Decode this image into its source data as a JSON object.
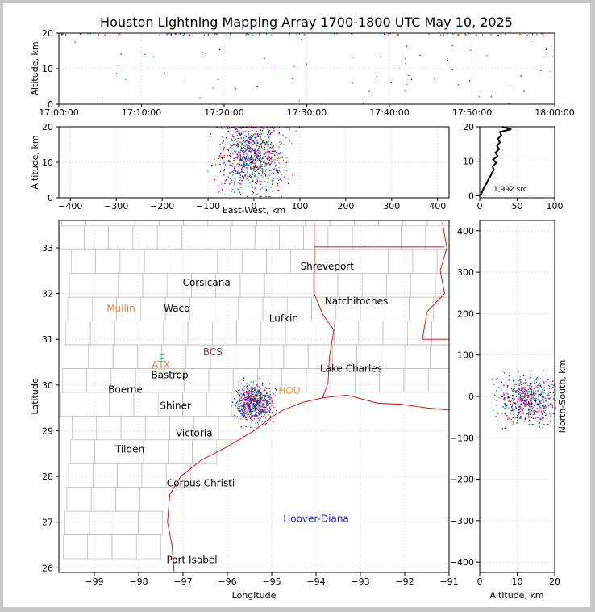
{
  "title": "Houston Lightning Mapping Array 1700-1800 UTC May 10, 2025",
  "chart_data": [
    {
      "panel": "time-altitude",
      "type": "scatter",
      "xlabel": "",
      "ylabel": "Altitude, km",
      "x_ticks": [
        "17:00:00",
        "17:10:00",
        "17:20:00",
        "17:30:00",
        "17:40:00",
        "17:50:00",
        "18:00:00"
      ],
      "xlim": [
        "17:00:00",
        "18:00:00"
      ],
      "ylim": [
        0,
        20
      ],
      "y_ticks": [
        "0",
        "10",
        "20"
      ],
      "grid": true
    },
    {
      "panel": "east-west-altitude",
      "type": "scatter",
      "xlabel": "East-West, km",
      "ylabel": "Altitude, km",
      "xlim": [
        -425,
        425
      ],
      "ylim": [
        0,
        20
      ],
      "x_ticks": [
        "−400",
        "−300",
        "−200",
        "−100",
        "0",
        "100",
        "200",
        "300",
        "400"
      ],
      "y_ticks": [
        "0",
        "10",
        "20"
      ],
      "grid": true
    },
    {
      "panel": "altitude-histogram",
      "type": "line",
      "xlim": [
        0,
        100
      ],
      "ylim": [
        0,
        20
      ],
      "x_ticks": [
        "0",
        "50",
        "100"
      ],
      "y_ticks": [
        "0",
        "10",
        "20"
      ],
      "annotation": "1,992 src",
      "profile": [
        [
          1,
          0
        ],
        [
          3,
          1
        ],
        [
          5,
          2
        ],
        [
          6,
          2.5
        ],
        [
          9,
          3.5
        ],
        [
          11,
          4.5
        ],
        [
          14,
          5.5
        ],
        [
          16,
          6.5
        ],
        [
          19,
          7.5
        ],
        [
          17,
          8.5
        ],
        [
          22,
          9.5
        ],
        [
          18,
          10.5
        ],
        [
          24,
          11.5
        ],
        [
          21,
          12.5
        ],
        [
          26,
          13.5
        ],
        [
          23,
          14.5
        ],
        [
          27,
          15.5
        ],
        [
          24,
          16.5
        ],
        [
          29,
          17.5
        ],
        [
          27,
          18.5
        ],
        [
          42,
          19.3
        ],
        [
          30,
          20
        ]
      ]
    },
    {
      "panel": "map",
      "type": "scatter",
      "xlabel": "Longitude",
      "ylabel": "Latitude",
      "xlim": [
        -99.8,
        -91
      ],
      "ylim": [
        25.9,
        33.6
      ],
      "x_ticks": [
        "−99",
        "−98",
        "−97",
        "−96",
        "−95",
        "−94",
        "−93",
        "−92",
        "−91"
      ],
      "y_ticks": [
        "26",
        "27",
        "28",
        "29",
        "30",
        "31",
        "32",
        "33"
      ],
      "grid": true
    },
    {
      "panel": "altitude-north-south",
      "type": "scatter",
      "xlabel": "Altitude, km",
      "ylabel": "North-South, km",
      "xlim": [
        0,
        20
      ],
      "ylim": [
        -425,
        425
      ],
      "x_ticks": [
        "0",
        "10",
        "20"
      ],
      "y_ticks": [
        "−400",
        "−300",
        "−200",
        "−100",
        "0",
        "100",
        "200",
        "300",
        "400"
      ],
      "grid": true
    }
  ],
  "cities": [
    {
      "name": "Shreveport",
      "lon": -93.75,
      "lat": 32.52,
      "color": "#000000"
    },
    {
      "name": "Corsicana",
      "lon": -96.47,
      "lat": 32.17,
      "color": "#000000"
    },
    {
      "name": "Natchitoches",
      "lon": -93.09,
      "lat": 31.76,
      "color": "#000000"
    },
    {
      "name": "Mullin",
      "lon": -98.4,
      "lat": 31.6,
      "color": "#f08040"
    },
    {
      "name": "Waco",
      "lon": -97.14,
      "lat": 31.6,
      "color": "#000000"
    },
    {
      "name": "Lufkin",
      "lon": -94.73,
      "lat": 31.38,
      "color": "#000000"
    },
    {
      "name": "BCS",
      "lon": -96.33,
      "lat": 30.65,
      "color": "#b03040"
    },
    {
      "name": "ATX",
      "lon": -97.5,
      "lat": 30.37,
      "color": "#f08040"
    },
    {
      "name": "Lake Charles",
      "lon": -93.21,
      "lat": 30.29,
      "color": "#000000"
    },
    {
      "name": "Bastrop",
      "lon": -97.3,
      "lat": 30.15,
      "color": "#000000"
    },
    {
      "name": "Boerne",
      "lon": -98.3,
      "lat": 29.83,
      "color": "#000000"
    },
    {
      "name": "HOU",
      "lon": -94.6,
      "lat": 29.8,
      "color": "#f0a020"
    },
    {
      "name": "Shiner",
      "lon": -97.17,
      "lat": 29.48,
      "color": "#000000"
    },
    {
      "name": "Victoria",
      "lon": -96.75,
      "lat": 28.88,
      "color": "#000000"
    },
    {
      "name": "Tilden",
      "lon": -98.2,
      "lat": 28.52,
      "color": "#000000"
    },
    {
      "name": "Corpus Christi",
      "lon": -96.6,
      "lat": 27.78,
      "color": "#000000"
    },
    {
      "name": "Hoover-Diana",
      "lon": -94.0,
      "lat": 27.0,
      "color": "#2020c0"
    },
    {
      "name": "Port Isabel",
      "lon": -96.8,
      "lat": 26.1,
      "color": "#000000"
    }
  ]
}
